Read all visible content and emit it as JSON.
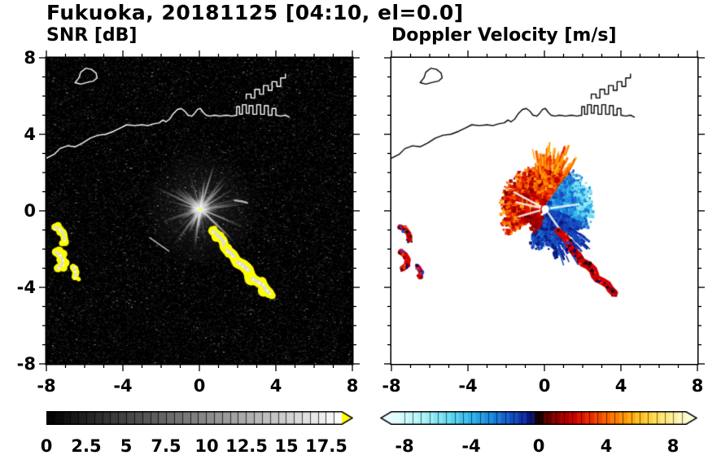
{
  "title": "Fukuoka, 20181125 [04:10, el=0.0]",
  "panels": {
    "snr": {
      "subtitle": "SNR [dB]",
      "xticks": [
        "-8",
        "-4",
        "0",
        "4",
        "8"
      ],
      "yticks": [
        "8",
        "4",
        "0",
        "-4",
        "-8"
      ],
      "colorbar_ticks": [
        "0",
        "2.5",
        "5",
        "7.5",
        "10",
        "12.5",
        "15",
        "17.5"
      ]
    },
    "vel": {
      "subtitle": "Doppler Velocity [m/s]",
      "xticks": [
        "-8",
        "-4",
        "0",
        "4",
        "8"
      ],
      "colorbar_ticks": [
        "-8",
        "-4",
        "0",
        "4",
        "8"
      ]
    }
  },
  "chart_data": {
    "type": "heatmap",
    "figure_title": "Fukuoka, 20181125 [04:10, el=0.0]",
    "site": "Fukuoka",
    "date": "20181125",
    "time": "04:10",
    "elevation_deg": 0.0,
    "panels": [
      {
        "title": "SNR [dB]",
        "kind": "radar_ppi",
        "xlim": [
          -8,
          8
        ],
        "ylim": [
          -8,
          8
        ],
        "xticks": [
          -8,
          -4,
          0,
          4,
          8
        ],
        "yticks": [
          -8,
          -4,
          0,
          4,
          8
        ],
        "xlabel": "",
        "ylabel": "",
        "background": "#000000",
        "colorbar": {
          "range": [
            0,
            18.5
          ],
          "ticks": [
            0,
            2.5,
            5,
            7.5,
            10,
            12.5,
            15,
            17.5
          ],
          "scale": "grayscale-black-to-white",
          "over_color": "#ffff00"
        }
      },
      {
        "title": "Doppler Velocity [m/s]",
        "kind": "radar_ppi",
        "xlim": [
          -8,
          8
        ],
        "ylim": [
          -8,
          8
        ],
        "xticks": [
          -8,
          -4,
          0,
          4,
          8
        ],
        "yticks": [
          -8,
          -4,
          0,
          4,
          8
        ],
        "xlabel": "",
        "ylabel": "",
        "background": "#ffffff",
        "colorbar": {
          "range": [
            -8.75,
            8.75
          ],
          "ticks": [
            -8,
            -4,
            0,
            4,
            8
          ],
          "stops": [
            [
              0.0,
              "#e9ffff"
            ],
            [
              0.06,
              "#c8f8fa"
            ],
            [
              0.13,
              "#9aeef6"
            ],
            [
              0.2,
              "#62d8f0"
            ],
            [
              0.27,
              "#30b4e8"
            ],
            [
              0.34,
              "#1e86dc"
            ],
            [
              0.4,
              "#1857c8"
            ],
            [
              0.445,
              "#1230a8"
            ],
            [
              0.475,
              "#0a1470"
            ],
            [
              0.493,
              "#05082a"
            ],
            [
              0.5,
              "#1a0000"
            ],
            [
              0.52,
              "#550000"
            ],
            [
              0.56,
              "#900000"
            ],
            [
              0.61,
              "#c40000"
            ],
            [
              0.66,
              "#e82000"
            ],
            [
              0.72,
              "#f85a00"
            ],
            [
              0.78,
              "#ff9000"
            ],
            [
              0.84,
              "#ffc020"
            ],
            [
              0.9,
              "#ffdf5a"
            ],
            [
              0.96,
              "#fff1a0"
            ],
            [
              1.0,
              "#fffbd8"
            ]
          ]
        }
      }
    ],
    "radar_center": [
      0.05,
      0.1
    ],
    "clutter_starburst_radius": 2.6,
    "coastline": {
      "mainland": [
        [
          -8,
          2.75
        ],
        [
          -7.6,
          2.95
        ],
        [
          -7.3,
          3.25
        ],
        [
          -6.9,
          3.4
        ],
        [
          -6.5,
          3.35
        ],
        [
          -6.1,
          3.55
        ],
        [
          -5.7,
          3.8
        ],
        [
          -5.3,
          3.95
        ],
        [
          -4.9,
          4.0
        ],
        [
          -4.5,
          4.15
        ],
        [
          -4.1,
          4.35
        ],
        [
          -3.8,
          4.5
        ],
        [
          -3.4,
          4.45
        ],
        [
          -3.0,
          4.5
        ],
        [
          -2.7,
          4.45
        ],
        [
          -2.4,
          4.55
        ],
        [
          -2.1,
          4.6
        ],
        [
          -1.9,
          4.75
        ],
        [
          -1.75,
          4.65
        ],
        [
          -1.55,
          4.8
        ],
        [
          -1.35,
          5.1
        ],
        [
          -1.15,
          5.3
        ],
        [
          -0.95,
          5.35
        ],
        [
          -0.75,
          5.2
        ],
        [
          -0.6,
          5.0
        ],
        [
          -0.4,
          4.95
        ],
        [
          -0.25,
          5.1
        ],
        [
          -0.1,
          5.3
        ],
        [
          0.05,
          5.35
        ],
        [
          0.2,
          5.15
        ],
        [
          0.35,
          5.0
        ],
        [
          0.55,
          4.95
        ],
        [
          0.8,
          5.0
        ],
        [
          1.1,
          4.95
        ],
        [
          1.4,
          5.0
        ],
        [
          1.7,
          4.95
        ],
        [
          1.95,
          5.0
        ],
        [
          1.95,
          5.45
        ],
        [
          2.1,
          5.45
        ],
        [
          2.1,
          5.05
        ],
        [
          2.25,
          5.05
        ],
        [
          2.25,
          5.55
        ],
        [
          2.45,
          5.55
        ],
        [
          2.45,
          5.1
        ],
        [
          2.6,
          5.1
        ],
        [
          2.6,
          5.5
        ],
        [
          2.8,
          5.5
        ],
        [
          2.8,
          5.05
        ],
        [
          3.0,
          5.05
        ],
        [
          3.0,
          5.55
        ],
        [
          3.2,
          5.55
        ],
        [
          3.2,
          5.05
        ],
        [
          3.4,
          5.05
        ],
        [
          3.4,
          5.5
        ],
        [
          3.6,
          5.5
        ],
        [
          3.6,
          5.0
        ],
        [
          3.8,
          5.0
        ],
        [
          3.8,
          5.35
        ],
        [
          4.0,
          5.35
        ],
        [
          4.0,
          5.0
        ],
        [
          4.25,
          4.95
        ],
        [
          4.5,
          5.0
        ],
        [
          4.7,
          4.9
        ]
      ],
      "breakwater": [
        [
          2.45,
          5.85
        ],
        [
          2.45,
          6.1
        ],
        [
          2.7,
          6.1
        ],
        [
          2.7,
          5.9
        ],
        [
          2.9,
          5.9
        ],
        [
          2.9,
          6.35
        ],
        [
          3.15,
          6.35
        ],
        [
          3.15,
          6.1
        ],
        [
          3.35,
          6.1
        ],
        [
          3.35,
          6.55
        ],
        [
          3.6,
          6.55
        ],
        [
          3.6,
          6.3
        ],
        [
          3.8,
          6.3
        ],
        [
          3.8,
          6.75
        ],
        [
          4.05,
          6.75
        ],
        [
          4.05,
          6.5
        ],
        [
          4.25,
          6.5
        ],
        [
          4.25,
          6.95
        ],
        [
          4.5,
          6.95
        ],
        [
          4.5,
          7.15
        ]
      ],
      "island": [
        [
          -6.5,
          6.7
        ],
        [
          -6.3,
          6.95
        ],
        [
          -6.2,
          7.25
        ],
        [
          -5.95,
          7.45
        ],
        [
          -5.65,
          7.4
        ],
        [
          -5.4,
          7.2
        ],
        [
          -5.35,
          6.95
        ],
        [
          -5.55,
          6.78
        ],
        [
          -5.85,
          6.72
        ],
        [
          -6.2,
          6.62
        ]
      ]
    },
    "echoes": [
      {
        "path": [
          [
            -7.55,
            -0.85
          ],
          [
            -7.3,
            -0.95
          ],
          [
            -7.1,
            -1.2
          ],
          [
            -7.05,
            -1.5
          ]
        ],
        "w": 0.16,
        "panels": [
          "snr",
          "vel"
        ]
      },
      {
        "path": [
          [
            -7.5,
            -2.15
          ],
          [
            -7.3,
            -2.3
          ],
          [
            -7.15,
            -2.55
          ],
          [
            -7.2,
            -2.85
          ],
          [
            -7.4,
            -3.0
          ]
        ],
        "w": 0.18,
        "panels": [
          "snr",
          "vel"
        ]
      },
      {
        "path": [
          [
            -6.6,
            -2.95
          ],
          [
            -6.45,
            -3.2
          ],
          [
            -6.5,
            -3.45
          ]
        ],
        "w": 0.15,
        "panels": [
          "snr",
          "vel"
        ]
      },
      {
        "path": [
          [
            0.7,
            -1.05
          ],
          [
            1.0,
            -1.3
          ],
          [
            1.25,
            -1.6
          ],
          [
            1.3,
            -1.9
          ]
        ],
        "w": 0.2,
        "panels": [
          "snr",
          "vel"
        ]
      },
      {
        "path": [
          [
            1.45,
            -2.05
          ],
          [
            1.75,
            -2.3
          ],
          [
            1.9,
            -2.55
          ]
        ],
        "w": 0.22,
        "panels": [
          "snr",
          "vel"
        ]
      },
      {
        "path": [
          [
            2.0,
            -2.7
          ],
          [
            2.3,
            -2.85
          ],
          [
            2.55,
            -3.1
          ],
          [
            2.65,
            -3.4
          ]
        ],
        "w": 0.25,
        "panels": [
          "snr",
          "vel"
        ]
      },
      {
        "path": [
          [
            2.75,
            -3.55
          ],
          [
            3.05,
            -3.7
          ],
          [
            3.3,
            -3.85
          ],
          [
            3.45,
            -4.1
          ],
          [
            3.65,
            -4.3
          ]
        ],
        "w": 0.22,
        "panels": [
          "snr",
          "vel"
        ]
      },
      {
        "path": [
          [
            1.85,
            0.55
          ],
          [
            2.2,
            0.5
          ],
          [
            2.5,
            0.42
          ]
        ],
        "w": 0.1,
        "panels": [
          "snr"
        ],
        "style": "gray"
      },
      {
        "path": [
          [
            -2.6,
            -1.4
          ],
          [
            -1.6,
            -2.1
          ]
        ],
        "w": 0.07,
        "panels": [
          "snr"
        ],
        "style": "gray"
      }
    ],
    "velocity_regions": [
      {
        "name": "approaching-orange-fan",
        "a": [
          55,
          215
        ],
        "r": [
          0.25,
          2.25
        ],
        "v": [
          1.2,
          5.5
        ],
        "n": 1700
      },
      {
        "name": "orange-upward-spikes",
        "a": [
          58,
          105
        ],
        "r": [
          1.5,
          2.85
        ],
        "v": [
          3.0,
          6.0
        ],
        "n": 90,
        "spike": true
      },
      {
        "name": "receding-royal-blue",
        "a": [
          -25,
          55
        ],
        "r": [
          0.25,
          2.3
        ],
        "v": [
          -4.6,
          -2.0
        ],
        "n": 850
      },
      {
        "name": "receding-navy-wedge",
        "a": [
          -115,
          -20
        ],
        "r": [
          0.25,
          2.0
        ],
        "v": [
          -2.3,
          -0.6
        ],
        "n": 850
      },
      {
        "name": "navy-down-spikes",
        "a": [
          -80,
          -35
        ],
        "r": [
          1.4,
          2.6
        ],
        "v": [
          -1.6,
          -0.5
        ],
        "n": 60,
        "spike": true
      },
      {
        "name": "light-blue-fringe",
        "a": [
          -10,
          40
        ],
        "r": [
          1.7,
          2.45
        ],
        "v": [
          -6.5,
          -4.6
        ],
        "n": 160
      },
      {
        "name": "red-specks-lower-left",
        "a": [
          198,
          252
        ],
        "r": [
          0.4,
          1.3
        ],
        "v": [
          0.9,
          2.2
        ],
        "n": 110
      }
    ]
  }
}
